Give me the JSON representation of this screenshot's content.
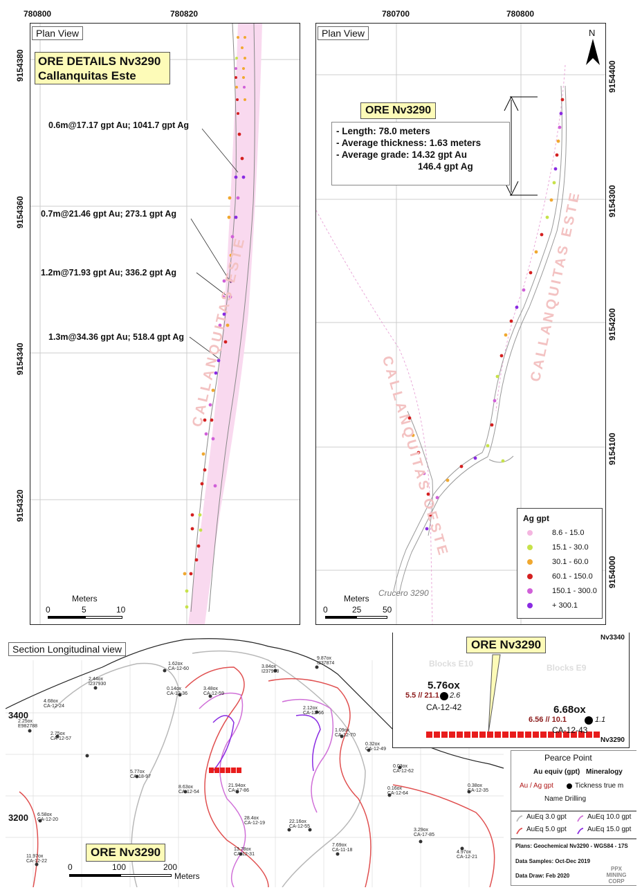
{
  "top_left": {
    "frame_label": "Plan View",
    "x_coords": [
      "780800",
      "780820"
    ],
    "y_coords": [
      "9154380",
      "9154360",
      "9154340",
      "9154320"
    ],
    "title_box": {
      "line1": "ORE DETAILS Nv3290",
      "line2": "Callanquitas Este"
    },
    "notes": [
      "0.6m@17.17 gpt Au; 1041.7 gpt Ag",
      "0.7m@21.46 gpt Au; 273.1 gpt Ag",
      "1.2m@71.93 gpt Au; 336.2 gpt Ag",
      "1.3m@34.36 gpt Au; 518.4 gpt Ag"
    ],
    "watermark": "CALLANQUITAS ESTE",
    "scale": {
      "title": "Meters",
      "ticks": [
        "0",
        "5",
        "10"
      ]
    }
  },
  "top_right": {
    "frame_label": "Plan View",
    "x_coords": [
      "780700",
      "780800"
    ],
    "y_coords": [
      "9154400",
      "9154300",
      "9154200",
      "9154100",
      "9154000"
    ],
    "north": "N",
    "ore_title": "ORE Nv3290",
    "info_lines": [
      "- Length: 78.0 meters",
      "- Average thickness: 1.63 meters",
      "- Average grade: 14.32 gpt Au",
      "146.4 gpt Ag"
    ],
    "watermarks": [
      "CALLANQUITAS ESTE",
      "CALLANQUITAS OESTE"
    ],
    "crucero": "Crucero 3290",
    "scale": {
      "title": "Meters",
      "ticks": [
        "0",
        "25",
        "50"
      ]
    },
    "legend": {
      "title": "Ag gpt",
      "items": [
        {
          "label": "8.6 - 15.0",
          "color": "#f4b6e0"
        },
        {
          "label": "15.1 - 30.0",
          "color": "#c7e24a"
        },
        {
          "label": "30.1 - 60.0",
          "color": "#f0a830"
        },
        {
          "label": "60.1 - 150.0",
          "color": "#d42020"
        },
        {
          "label": "150.1 - 300.0",
          "color": "#d060d8"
        },
        {
          "label": "+ 300.1",
          "color": "#8a2be2"
        }
      ]
    }
  },
  "bottom": {
    "frame_label": "Section Longitudinal view",
    "levels": [
      "3400",
      "3200"
    ],
    "ore_label": "ORE Nv3290",
    "scale": {
      "ticks": [
        "0",
        "100",
        "200"
      ],
      "unit": "Meters"
    },
    "inset": {
      "title": "ORE Nv3290",
      "level_top": "Nv3340",
      "level_bottom": "Nv3290",
      "blocks_left": "Blocks E10",
      "blocks_right": "Blocks E9",
      "hole1": {
        "au_equiv": "5.76ox",
        "au_ag": "5.5 // 21.1",
        "thick": "2.6",
        "name": "CA-12-42"
      },
      "hole2": {
        "au_equiv": "6.68ox",
        "au_ag": "6.56 // 10.1",
        "thick": "1.1",
        "name": "CA-12-43"
      }
    },
    "pearce": {
      "title": "Pearce Point",
      "au_equiv": "Au equiv (gpt)",
      "mineralogy": "Mineralogy",
      "au_ag": "Au / Ag gpt",
      "thickness": "Tickness true m",
      "name": "Name Drilling"
    },
    "contours": [
      {
        "label": "AuEq 3.0 gpt",
        "color": "#b8b8b8"
      },
      {
        "label": "AuEq 10.0 gpt",
        "color": "#d070d8"
      },
      {
        "label": "AuEq 5.0 gpt",
        "color": "#e05050"
      },
      {
        "label": "AuEq 15.0 gpt",
        "color": "#8a2be2"
      }
    ],
    "footer": {
      "plans": "Plans: Geochemical Nv3290 - WGS84 - 17S",
      "samples": "Data Samples: Oct-Dec 2019",
      "draw": "Data Draw: Feb 2020",
      "logo": "PPX MINING CORP"
    },
    "drill_holes": [
      {
        "au": "2.25ox",
        "name": "E982788"
      },
      {
        "au": "2.44ox",
        "name": "I237930"
      },
      {
        "au": "4.68ox",
        "name": "CA-12-24"
      },
      {
        "au": "2.75ox",
        "name": "CA-12-57"
      },
      {
        "au": "1.62ox",
        "name": "CA-12-60"
      },
      {
        "au": "0.14ox",
        "name": "CA-12-36"
      },
      {
        "au": "3.48ox",
        "name": "CA-12-59"
      },
      {
        "au": "3.84ox",
        "name": "I237968"
      },
      {
        "au": "9.87ox",
        "name": "I237874"
      },
      {
        "au": "2.12ox",
        "name": "CA-12-66"
      },
      {
        "au": "1.09ox",
        "name": "CA-12-70"
      },
      {
        "au": "0.32ox",
        "name": "CA-12-49"
      },
      {
        "au": "0.03ox",
        "name": "CA-12-62"
      },
      {
        "au": "0.16ox",
        "name": "CA-12-64"
      },
      {
        "au": "0.38ox",
        "name": "CA-12-35"
      },
      {
        "au": "5.77ox",
        "name": "CA-18-97"
      },
      {
        "au": "8.63ox",
        "name": "CA-12-54"
      },
      {
        "au": "21.94ox",
        "name": "CA-17-86"
      },
      {
        "au": "28.4ox",
        "name": "CA-12-19"
      },
      {
        "au": "22.16ox",
        "name": "CA-12-55"
      },
      {
        "au": "13.78ox",
        "name": "CA-12-31"
      },
      {
        "au": "11.97ox",
        "name": "CA-12-22"
      },
      {
        "au": "6.58ox",
        "name": "CA-12-20"
      },
      {
        "au": "7.69ox",
        "name": "CA-11-18"
      },
      {
        "au": "3.29ox",
        "name": "CA-17-85"
      },
      {
        "au": "4.97ox",
        "name": "CA-12-21"
      }
    ]
  }
}
